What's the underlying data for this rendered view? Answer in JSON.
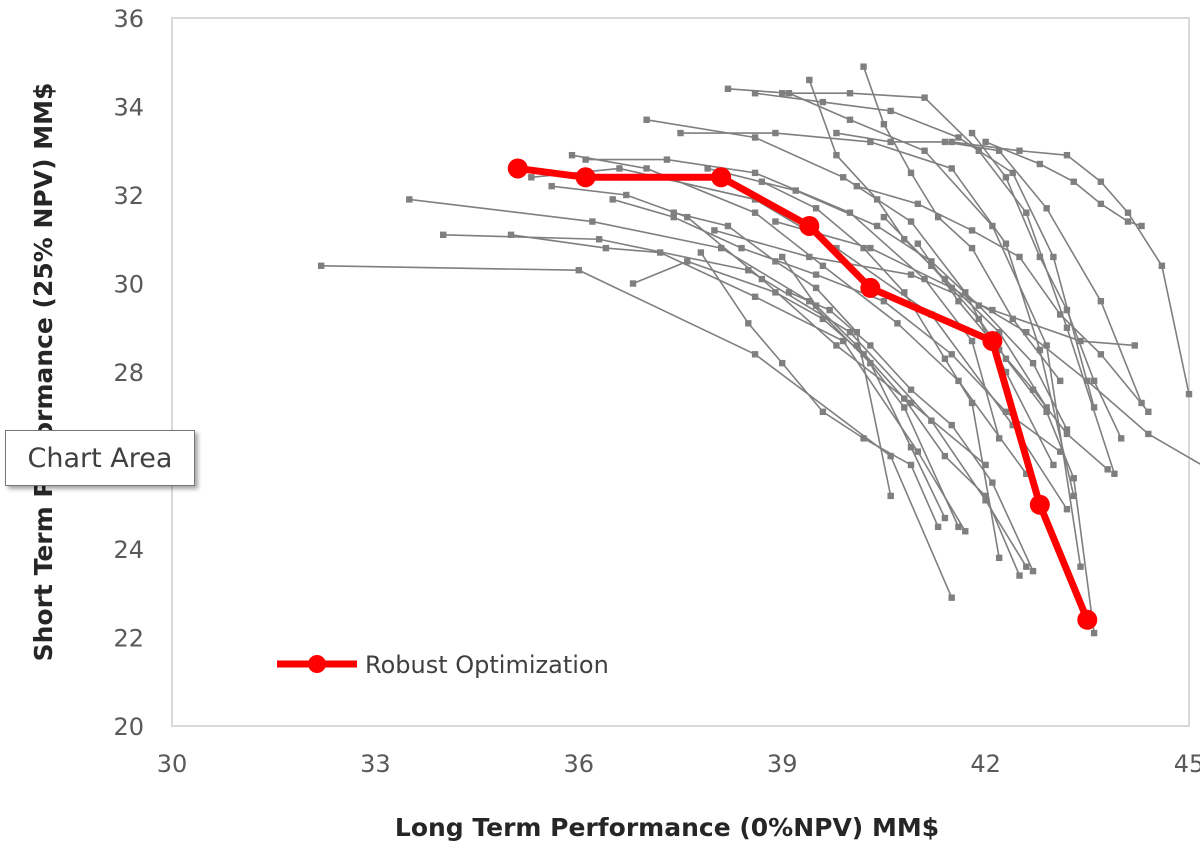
{
  "tooltip": {
    "label": "Chart Area"
  },
  "colors": {
    "robust": "#ff0000",
    "scenario": "#7f7f7f",
    "plot_border": "#d9d9d9"
  },
  "chart_data": {
    "type": "scatter",
    "xlabel": "Long Term Performance (0%NPV) MM$",
    "ylabel": "Short Term Performance (25% NPV) MM$",
    "xlim": [
      30,
      45
    ],
    "ylim": [
      20,
      36
    ],
    "xticks": [
      30,
      33,
      36,
      39,
      42,
      45
    ],
    "yticks": [
      20,
      22,
      24,
      26,
      28,
      30,
      32,
      34,
      36
    ],
    "grid": false,
    "legend_position": "bottom-left",
    "series": [
      {
        "name": "Robust Optimization",
        "x": [
          35.1,
          36.1,
          38.1,
          39.4,
          40.3,
          42.1,
          42.8,
          43.5
        ],
        "y": [
          32.6,
          32.4,
          32.4,
          31.3,
          29.9,
          28.7,
          25.0,
          22.4
        ]
      }
    ],
    "scenario_lines": [
      {
        "x": [
          32.2,
          36.0,
          38.6,
          40.6,
          41.5
        ],
        "y": [
          30.4,
          30.3,
          28.4,
          26.1,
          22.9
        ]
      },
      {
        "x": [
          33.5,
          36.2,
          38.1,
          39.4,
          40.3,
          40.9,
          41.4
        ],
        "y": [
          31.9,
          31.4,
          30.8,
          29.6,
          28.2,
          26.3,
          24.7
        ]
      },
      {
        "x": [
          34.0,
          36.3,
          38.5,
          40.0,
          41.2,
          42.0,
          42.6
        ],
        "y": [
          31.1,
          31.0,
          30.3,
          28.9,
          26.9,
          25.1,
          23.6
        ]
      },
      {
        "x": [
          35.0,
          36.4,
          37.2,
          38.6,
          39.9,
          41.0,
          41.7
        ],
        "y": [
          31.1,
          30.8,
          30.7,
          29.7,
          28.7,
          26.2,
          24.4
        ]
      },
      {
        "x": [
          35.3,
          36.6,
          38.6,
          39.8,
          41.2,
          42.4,
          43.2
        ],
        "y": [
          32.4,
          32.6,
          31.9,
          30.8,
          29.3,
          26.8,
          24.9
        ]
      },
      {
        "x": [
          35.6,
          36.7,
          37.6,
          38.7,
          39.8,
          40.9,
          42.0
        ],
        "y": [
          32.2,
          32.0,
          31.5,
          30.1,
          28.6,
          27.3,
          25.9
        ]
      },
      {
        "x": [
          35.9,
          37.0,
          38.6,
          39.6,
          40.7,
          41.6,
          42.6
        ],
        "y": [
          32.9,
          32.6,
          31.6,
          30.4,
          29.1,
          27.8,
          25.7
        ]
      },
      {
        "x": [
          36.1,
          37.3,
          38.6,
          40.0,
          41.1,
          41.8,
          42.2
        ],
        "y": [
          32.8,
          32.8,
          32.5,
          31.6,
          30.1,
          28.7,
          26.5
        ]
      },
      {
        "x": [
          36.8,
          37.6,
          38.9,
          39.6,
          40.2,
          40.8,
          41.6
        ],
        "y": [
          30.0,
          30.5,
          29.8,
          29.2,
          28.4,
          27.2,
          24.5
        ]
      },
      {
        "x": [
          37.0,
          38.6,
          39.9,
          40.9,
          41.7,
          42.3,
          43.0
        ],
        "y": [
          33.7,
          33.3,
          32.4,
          31.4,
          29.8,
          28.0,
          25.9
        ]
      },
      {
        "x": [
          37.5,
          38.9,
          40.3,
          41.5,
          42.3,
          42.8,
          43.3
        ],
        "y": [
          33.4,
          33.4,
          33.2,
          32.6,
          30.9,
          28.5,
          25.2
        ]
      },
      {
        "x": [
          37.9,
          39.2,
          40.4,
          41.2,
          41.9,
          42.7,
          43.2
        ],
        "y": [
          32.6,
          32.1,
          31.3,
          30.5,
          29.5,
          28.2,
          26.7
        ]
      },
      {
        "x": [
          38.2,
          39.1,
          40.0,
          41.1,
          42.1,
          42.9,
          43.4
        ],
        "y": [
          34.4,
          34.3,
          33.7,
          33.0,
          31.3,
          28.6,
          23.6
        ]
      },
      {
        "x": [
          38.6,
          39.6,
          40.6,
          41.6,
          42.4,
          43.0,
          43.6
        ],
        "y": [
          34.3,
          34.1,
          33.9,
          33.3,
          32.5,
          30.6,
          27.2
        ]
      },
      {
        "x": [
          39.0,
          40.0,
          41.1,
          41.9,
          42.6,
          43.2,
          43.9
        ],
        "y": [
          34.3,
          34.3,
          34.2,
          33.0,
          31.6,
          29.0,
          25.7
        ]
      },
      {
        "x": [
          39.4,
          39.8,
          40.4,
          40.8,
          41.4,
          42.2,
          42.9
        ],
        "y": [
          34.6,
          32.9,
          31.9,
          31.0,
          30.1,
          28.9,
          27.2
        ]
      },
      {
        "x": [
          40.2,
          40.5,
          40.9,
          41.3,
          41.8,
          42.4,
          43.1
        ],
        "y": [
          34.9,
          33.6,
          32.5,
          31.5,
          30.8,
          29.2,
          27.8
        ]
      },
      {
        "x": [
          39.8,
          40.6,
          41.4,
          42.2,
          42.9,
          43.7,
          44.3
        ],
        "y": [
          33.4,
          33.2,
          33.2,
          33.0,
          31.7,
          29.6,
          27.3
        ]
      },
      {
        "x": [
          41.5,
          42.5,
          43.2,
          43.7,
          44.1,
          44.6,
          45.0
        ],
        "y": [
          33.2,
          33.0,
          32.9,
          32.3,
          31.6,
          30.4,
          27.5
        ]
      },
      {
        "x": [
          42.0,
          42.8,
          43.3,
          43.7,
          44.1,
          44.3
        ],
        "y": [
          33.2,
          32.7,
          32.3,
          31.8,
          31.4,
          31.3
        ]
      },
      {
        "x": [
          41.8,
          42.3,
          42.8,
          43.2,
          43.6,
          44.0
        ],
        "y": [
          33.4,
          32.4,
          30.6,
          29.4,
          27.8,
          26.5
        ]
      },
      {
        "x": [
          41.0,
          41.6,
          42.2,
          42.7,
          43.2,
          43.8
        ],
        "y": [
          30.9,
          29.6,
          28.5,
          27.6,
          26.6,
          25.8
        ]
      },
      {
        "x": [
          38.7,
          39.5,
          40.2,
          40.8,
          41.4,
          41.8,
          42.2
        ],
        "y": [
          32.3,
          31.7,
          30.8,
          29.8,
          28.3,
          27.3,
          23.8
        ]
      },
      {
        "x": [
          37.4,
          38.2,
          38.9,
          39.5,
          40.1,
          40.6
        ],
        "y": [
          31.6,
          31.3,
          30.5,
          29.9,
          28.9,
          25.2
        ]
      },
      {
        "x": [
          36.5,
          37.4,
          38.4,
          39.5,
          40.5,
          41.5,
          42.3,
          43.1
        ],
        "y": [
          31.9,
          31.5,
          30.8,
          30.2,
          29.6,
          28.4,
          27.1,
          26.2
        ]
      },
      {
        "x": [
          38.0,
          39.4,
          40.9,
          42.1,
          43.4,
          44.2
        ],
        "y": [
          31.2,
          30.6,
          30.2,
          29.4,
          28.7,
          28.6
        ]
      },
      {
        "x": [
          40.1,
          41.0,
          41.8,
          42.5,
          43.1,
          43.7,
          44.4
        ],
        "y": [
          32.2,
          31.8,
          31.2,
          30.6,
          29.3,
          28.4,
          27.1
        ]
      },
      {
        "x": [
          38.9,
          40.3,
          41.5,
          42.6,
          43.5,
          44.4,
          45.3
        ],
        "y": [
          31.4,
          30.8,
          29.9,
          28.9,
          27.8,
          26.6,
          25.8
        ]
      },
      {
        "x": [
          39.0,
          39.5,
          40.1,
          40.8,
          41.4,
          42.0,
          42.5
        ],
        "y": [
          30.6,
          29.5,
          28.6,
          27.4,
          26.1,
          25.2,
          23.4
        ]
      },
      {
        "x": [
          37.8,
          38.5,
          39.0,
          39.6,
          40.2,
          40.9,
          41.3
        ],
        "y": [
          30.7,
          29.1,
          28.2,
          27.1,
          26.5,
          25.9,
          24.5
        ]
      },
      {
        "x": [
          39.1,
          39.7,
          40.3,
          40.9,
          41.5,
          42.1,
          42.7
        ],
        "y": [
          29.8,
          29.4,
          28.6,
          27.6,
          26.8,
          25.5,
          23.5
        ]
      },
      {
        "x": [
          40.5,
          41.2,
          41.9,
          42.3,
          42.9,
          43.3,
          43.6
        ],
        "y": [
          31.5,
          30.4,
          29.2,
          28.3,
          27.1,
          25.6,
          22.1
        ]
      }
    ]
  }
}
